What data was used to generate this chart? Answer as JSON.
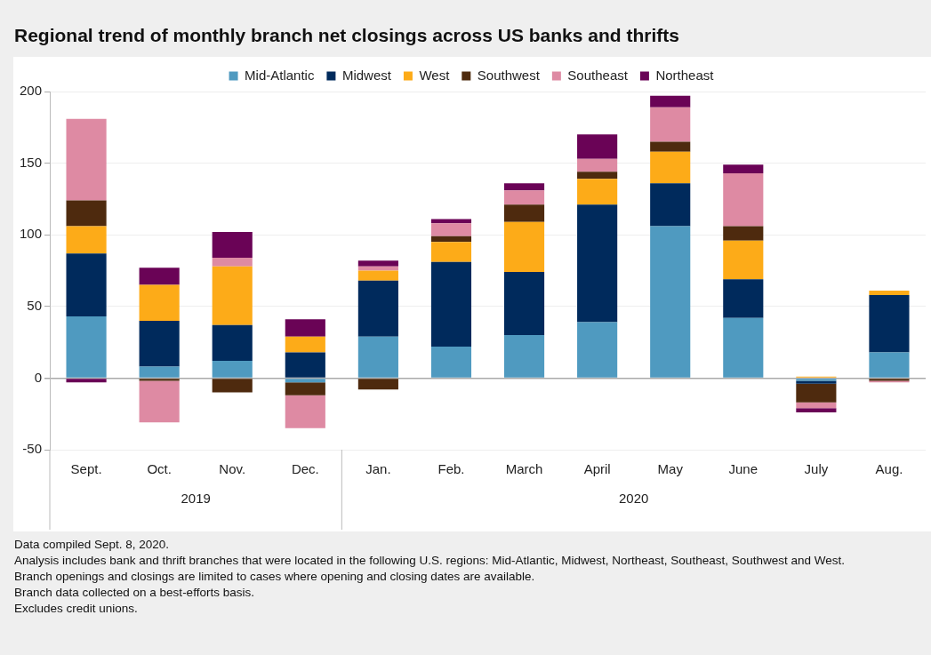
{
  "chart_data": {
    "type": "bar",
    "stacked": true,
    "title": "Regional trend of monthly branch net closings across US banks and thrifts",
    "categories": [
      "Sept.",
      "Oct.",
      "Nov.",
      "Dec.",
      "Jan.",
      "Feb.",
      "March",
      "April",
      "May",
      "June",
      "July",
      "Aug."
    ],
    "series": [
      {
        "name": "Mid-Atlantic",
        "color": "#4f9ac0",
        "values": [
          43,
          8,
          12,
          -3,
          29,
          22,
          30,
          39,
          106,
          42,
          -2,
          18
        ]
      },
      {
        "name": "Midwest",
        "color": "#002a5c",
        "values": [
          44,
          32,
          25,
          18,
          39,
          59,
          44,
          82,
          30,
          27,
          -2,
          40
        ]
      },
      {
        "name": "West",
        "color": "#fdab18",
        "values": [
          19,
          25,
          41,
          11,
          7,
          14,
          35,
          18,
          22,
          27,
          1,
          3
        ]
      },
      {
        "name": "Southwest",
        "color": "#4e2a0e",
        "values": [
          18,
          -2,
          -10,
          -9,
          -8,
          4,
          12,
          5,
          7,
          10,
          -13,
          -2
        ]
      },
      {
        "name": "Southeast",
        "color": "#de8aa3",
        "values": [
          57,
          -29,
          6,
          -23,
          3,
          9,
          10,
          9,
          24,
          37,
          -4,
          -1
        ]
      },
      {
        "name": "Northeast",
        "color": "#6a0356",
        "values": [
          -3,
          12,
          18,
          12,
          4,
          3,
          5,
          17,
          8,
          6,
          -3,
          0
        ]
      }
    ],
    "ylim": [
      -50,
      200
    ],
    "yticks": [
      -50,
      0,
      50,
      100,
      150,
      200
    ],
    "grid": "y",
    "legend": "top",
    "annotations": [
      "2019",
      "2020",
      "Data compiled Sept. 8, 2020.",
      "Analysis includes bank and thrift branches that were located in the following U.S. regions: Mid-Atlantic, Midwest, Northeast, Southeast, Southwest and West.",
      "Branch openings and closings are limited to cases where opening and closing dates are available.",
      "Branch data collected on a best-efforts basis.",
      "Excludes credit unions."
    ]
  }
}
